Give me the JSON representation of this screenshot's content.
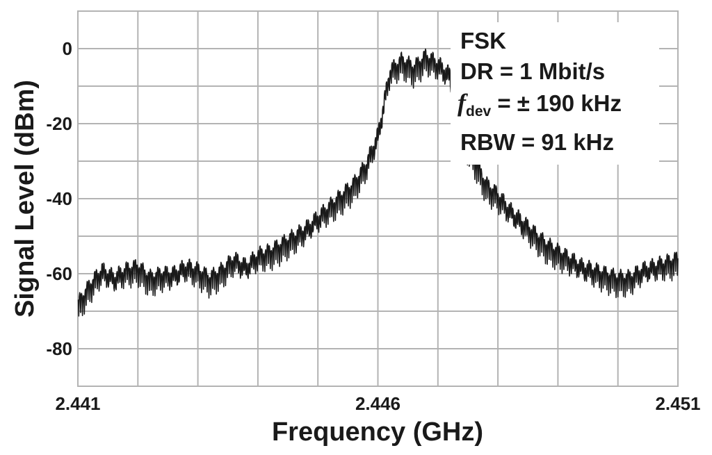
{
  "chart_data": {
    "type": "line",
    "xlabel": "Frequency (GHz)",
    "ylabel": "Signal Level (dBm)",
    "xlim": [
      2.441,
      2.451
    ],
    "ylim": [
      -90,
      10
    ],
    "x_ticks": [
      "2.441",
      "2.446",
      "2.451"
    ],
    "x_tick_values": [
      2.441,
      2.446,
      2.451
    ],
    "y_ticks": [
      "0",
      "-20",
      "-40",
      "-60",
      "-80"
    ],
    "y_tick_values": [
      0,
      -20,
      -40,
      -60,
      -80
    ],
    "grid": true,
    "legend": "none",
    "annotations": {
      "line1": "FSK",
      "line2": "DR = 1 Mbit/s",
      "line3_symbol": "f",
      "line3_sub": "dev",
      "line3_rest": " = ± 190 kHz",
      "line4": "RBW = 91 kHz",
      "placement": "top-right"
    },
    "series": [
      {
        "color": "#1a1a1a",
        "x": [
          2.441,
          2.4412,
          2.4414,
          2.4416,
          2.4418,
          2.442,
          2.4422,
          2.4424,
          2.4426,
          2.4428,
          2.443,
          2.4432,
          2.4434,
          2.4436,
          2.4438,
          2.444,
          2.4442,
          2.4444,
          2.4446,
          2.4448,
          2.445,
          2.4452,
          2.4454,
          2.4456,
          2.4458,
          2.446,
          2.4462,
          2.4464,
          2.4466,
          2.4468,
          2.447,
          2.4472,
          2.4474,
          2.4476,
          2.4478,
          2.448,
          2.4482,
          2.4484,
          2.4486,
          2.4488,
          2.449,
          2.4492,
          2.4494,
          2.4496,
          2.4498,
          2.45,
          2.4502,
          2.4504,
          2.4506,
          2.4508,
          2.451
        ],
        "y": [
          -67,
          -62,
          -58,
          -60,
          -58,
          -57,
          -60,
          -59,
          -59,
          -57,
          -58,
          -60,
          -58,
          -55,
          -57,
          -54,
          -53,
          -51,
          -49,
          -47,
          -44,
          -41,
          -38,
          -35,
          -30,
          -22,
          -5,
          -2,
          -4,
          -1,
          -3,
          -6,
          -22,
          -28,
          -35,
          -38,
          -42,
          -45,
          -48,
          -51,
          -53,
          -55,
          -57,
          -58,
          -59,
          -60,
          -60,
          -58,
          -57,
          -56,
          -55
        ]
      }
    ]
  }
}
